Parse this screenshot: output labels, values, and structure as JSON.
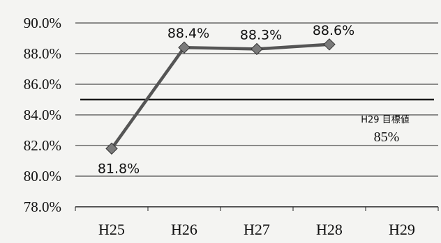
{
  "chart_data": {
    "type": "line",
    "categories": [
      "H25",
      "H26",
      "H27",
      "H28",
      "H29"
    ],
    "series": [
      {
        "values": [
          81.8,
          88.4,
          88.3,
          88.6,
          null
        ]
      }
    ],
    "data_labels": [
      "81.8%",
      "88.4%",
      "88.3%",
      "88.6%",
      ""
    ],
    "ylim": [
      78.0,
      90.0
    ],
    "yticks": [
      {
        "value": 90.0,
        "label": "90.0%"
      },
      {
        "value": 88.0,
        "label": "88.0%"
      },
      {
        "value": 86.0,
        "label": "86.0%"
      },
      {
        "value": 84.0,
        "label": "84.0%"
      },
      {
        "value": 82.0,
        "label": "82.0%"
      },
      {
        "value": 80.0,
        "label": "80.0%"
      },
      {
        "value": 78.0,
        "label": "78.0%"
      }
    ],
    "target": {
      "value": 85.0,
      "title": "H29 目標値",
      "value_label": "85%"
    },
    "grid": true,
    "legend": "none",
    "colors": {
      "line": "#555555",
      "marker": "#7a7a7a",
      "target": "#1a1a1a",
      "grid": "#222222"
    }
  }
}
